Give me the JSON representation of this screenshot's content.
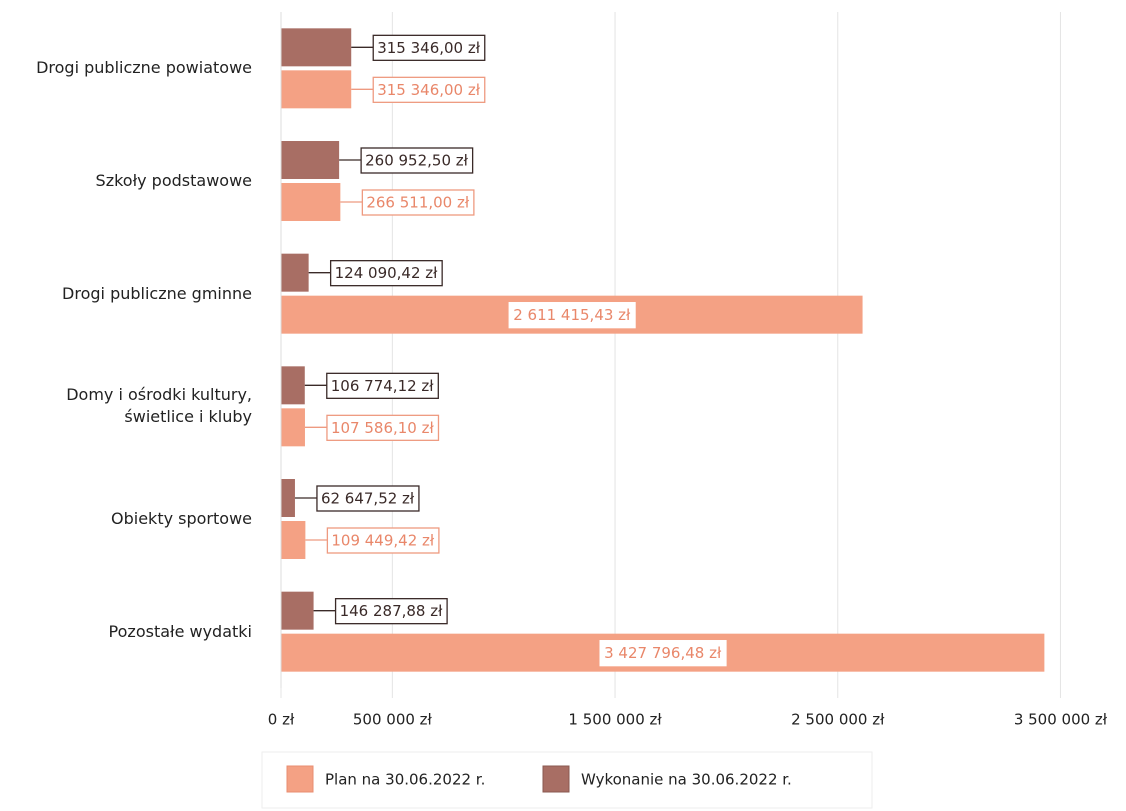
{
  "chart_data": {
    "type": "bar",
    "orientation": "horizontal",
    "categories": [
      "Drogi publiczne powiatowe",
      "Szkoły podstawowe",
      "Drogi publiczne gminne",
      "Domy i ośrodki kultury, świetlice i kluby",
      "Obiekty sportowe",
      "Pozostałe wydatki"
    ],
    "series": [
      {
        "name": "Wykonanie na 30.06.2022 r.",
        "color": "#a86e64",
        "values": [
          315346.0,
          260952.5,
          124090.42,
          106774.12,
          62647.52,
          146287.88
        ],
        "value_labels": [
          "315 346,00 zł",
          "260 952,50 zł",
          "124 090,42 zł",
          "106 774,12 zł",
          "62 647,52 zł",
          "146 287,88 zł"
        ]
      },
      {
        "name": "Plan na 30.06.2022 r.",
        "color": "#f4a184",
        "values": [
          315346.0,
          266511.0,
          2611415.43,
          107586.1,
          109449.42,
          3427796.48
        ],
        "value_labels": [
          "315 346,00 zł",
          "266 511,00 zł",
          "2 611 415,43 zł",
          "107 586,10 zł",
          "109 449,42 zł",
          "3 427 796,48 zł"
        ]
      }
    ],
    "xlim": [
      0,
      3700000
    ],
    "xticks": [
      {
        "value": 0,
        "label": "0 zł"
      },
      {
        "value": 500000,
        "label": "500 000 zł"
      },
      {
        "value": 1500000,
        "label": "1 500 000 zł"
      },
      {
        "value": 2500000,
        "label": "2 500 000 zł"
      },
      {
        "value": 3500000,
        "label": "3 500 000 zł"
      }
    ],
    "grid": true,
    "legend": "bottom"
  }
}
